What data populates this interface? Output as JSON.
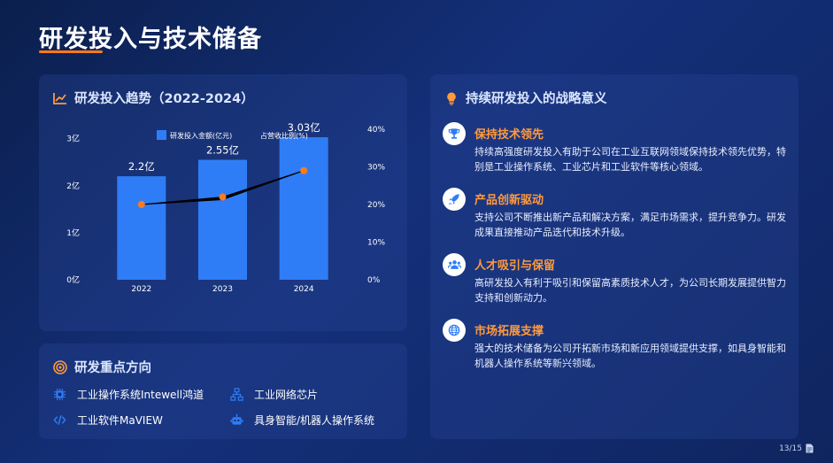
{
  "page": {
    "title": "研发投入与技术储备",
    "page_number": "13/15"
  },
  "chart_card": {
    "title": "研发投入趋势（2022-2024）",
    "icon": "line-chart-icon"
  },
  "chart_data": {
    "type": "bar",
    "categories": [
      "2022",
      "2023",
      "2024"
    ],
    "series": [
      {
        "name": "研发投入金额(亿元)",
        "values": [
          2.2,
          2.55,
          3.03
        ],
        "labels": [
          "2.2亿",
          "2.55亿",
          "3.03亿"
        ],
        "color": "#2f7df6"
      },
      {
        "name": "占营收比例(%)",
        "type": "line",
        "values": [
          20,
          22,
          29
        ],
        "color": "#ff7a1a",
        "axis": "right"
      }
    ],
    "y_left": {
      "ticks": [
        "0亿",
        "1亿",
        "2亿",
        "3亿"
      ],
      "range": [
        0,
        3.2
      ]
    },
    "y_right": {
      "ticks": [
        "0%",
        "10%",
        "20%",
        "30%",
        "40%"
      ],
      "range": [
        0,
        40
      ]
    },
    "legend": "top-center",
    "grid": false
  },
  "focus_card": {
    "title": "研发重点方向",
    "icon": "target-icon",
    "items": [
      {
        "label": "工业操作系统Intewell鸿道",
        "icon": "chip-icon"
      },
      {
        "label": "工业网络芯片",
        "icon": "network-icon"
      },
      {
        "label": "工业软件MaVIEW",
        "icon": "code-icon"
      },
      {
        "label": "具身智能/机器人操作系统",
        "icon": "robot-icon"
      }
    ]
  },
  "strategy_card": {
    "title": "持续研发投入的战略意义",
    "icon": "lightbulb-icon",
    "items": [
      {
        "heading": "保持技术领先",
        "body": "持续高强度研发投入有助于公司在工业互联网领域保持技术领先优势，特别是工业操作系统、工业芯片和工业软件等核心领域。",
        "icon": "trophy-icon"
      },
      {
        "heading": "产品创新驱动",
        "body": "支持公司不断推出新产品和解决方案，满足市场需求，提升竞争力。研发成果直接推动产品迭代和技术升级。",
        "icon": "rocket-icon"
      },
      {
        "heading": "人才吸引与保留",
        "body": "高研发投入有利于吸引和保留高素质技术人才，为公司长期发展提供智力支持和创新动力。",
        "icon": "users-icon"
      },
      {
        "heading": "市场拓展支撑",
        "body": "强大的技术储备为公司开拓新市场和新应用领域提供支撑，如具身智能和机器人操作系统等新兴领域。",
        "icon": "globe-icon"
      }
    ]
  },
  "colors": {
    "accent": "#ff7a1a",
    "bar": "#2f7df6",
    "icon_blue": "#2f7df6",
    "heading_orange": "#ff9a3c"
  }
}
